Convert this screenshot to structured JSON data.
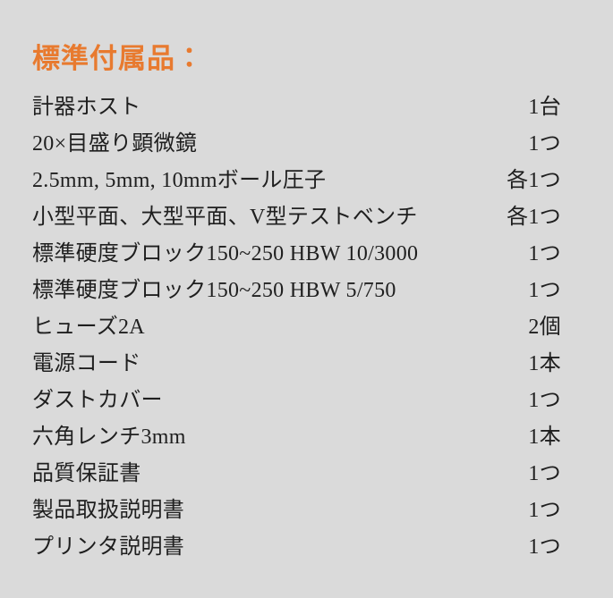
{
  "colors": {
    "background": "#dadada",
    "accent": "#e87a2f",
    "text": "#1f1f1f"
  },
  "section": {
    "title": "標準付属品："
  },
  "items": [
    {
      "label": "計器ホスト",
      "qty": "1台"
    },
    {
      "label": "20×目盛り顕微鏡",
      "qty": "1つ"
    },
    {
      "label": "2.5mm, 5mm, 10mmボール圧子",
      "qty": "各1つ"
    },
    {
      "label": "小型平面、大型平面、V型テストベンチ",
      "qty": "各1つ"
    },
    {
      "label": "標準硬度ブロック150~250 HBW 10/3000",
      "qty": "1つ"
    },
    {
      "label": "標準硬度ブロック150~250 HBW 5/750",
      "qty": "1つ"
    },
    {
      "label": "ヒューズ2A",
      "qty": "2個"
    },
    {
      "label": "電源コード",
      "qty": "1本"
    },
    {
      "label": "ダストカバー",
      "qty": "1つ"
    },
    {
      "label": "六角レンチ3mm",
      "qty": "1本"
    },
    {
      "label": "品質保証書",
      "qty": "1つ"
    },
    {
      "label": "製品取扱説明書",
      "qty": "1つ"
    },
    {
      "label": "プリンタ説明書",
      "qty": "1つ"
    }
  ]
}
